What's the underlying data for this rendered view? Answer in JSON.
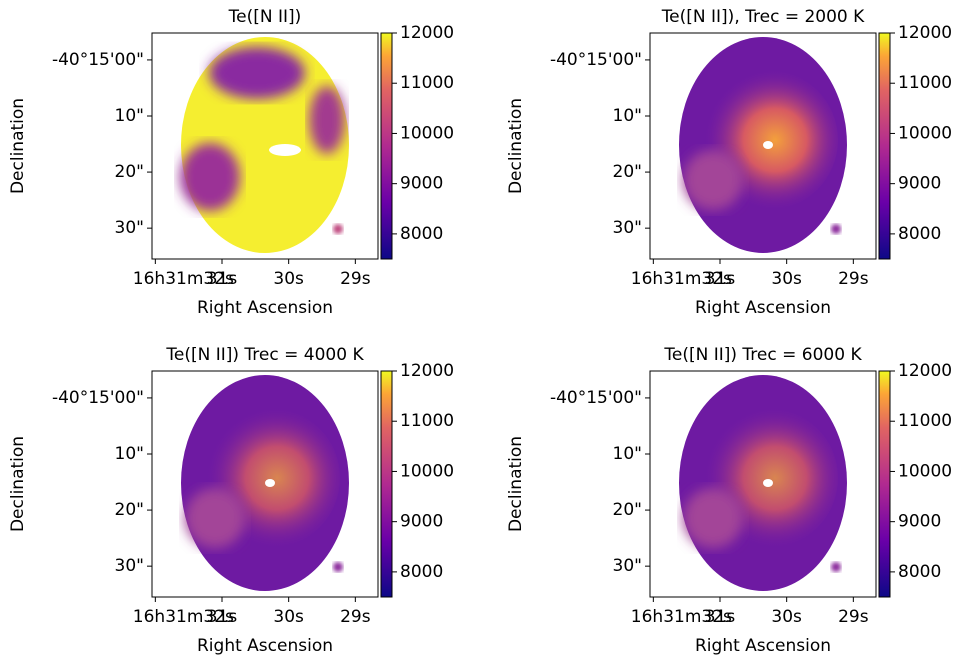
{
  "chart_data": [
    {
      "type": "image",
      "title": "Te([N II])",
      "xlabel": "Right Ascension",
      "ylabel": "Declination",
      "xlim": [
        32.05,
        28.66
      ],
      "ylim": [
        35.5,
        -4.8
      ],
      "xticks": [
        {
          "value": 32,
          "label": "16h31m32s"
        },
        {
          "value": 31,
          "label": "31s"
        },
        {
          "value": 30,
          "label": "30s"
        },
        {
          "value": 29,
          "label": "29s"
        }
      ],
      "yticks": [
        {
          "value": 0,
          "label": "-40°15'00\""
        },
        {
          "value": 10,
          "label": "10\""
        },
        {
          "value": 20,
          "label": "20\""
        },
        {
          "value": 30,
          "label": "30\""
        }
      ],
      "colormap": "plasma",
      "clim": [
        7500,
        12000
      ],
      "cticks": [
        8000,
        9000,
        10000,
        11000,
        12000
      ]
    },
    {
      "type": "image",
      "title": "Te([N II]), Trec = 2000 K",
      "xlabel": "Right Ascension",
      "ylabel": "Declination",
      "xlim": [
        32.05,
        28.66
      ],
      "ylim": [
        35.5,
        -4.8
      ],
      "xticks": [
        {
          "value": 32,
          "label": "16h31m32s"
        },
        {
          "value": 31,
          "label": "31s"
        },
        {
          "value": 30,
          "label": "30s"
        },
        {
          "value": 29,
          "label": "29s"
        }
      ],
      "yticks": [
        {
          "value": 0,
          "label": "-40°15'00\""
        },
        {
          "value": 10,
          "label": "10\""
        },
        {
          "value": 20,
          "label": "20\""
        },
        {
          "value": 30,
          "label": "30\""
        }
      ],
      "colormap": "plasma",
      "clim": [
        7500,
        12000
      ],
      "cticks": [
        8000,
        9000,
        10000,
        11000,
        12000
      ]
    },
    {
      "type": "image",
      "title": "Te([N II]) Trec = 4000 K",
      "xlabel": "Right Ascension",
      "ylabel": "Declination",
      "xlim": [
        32.05,
        28.66
      ],
      "ylim": [
        35.5,
        -4.8
      ],
      "xticks": [
        {
          "value": 32,
          "label": "16h31m32s"
        },
        {
          "value": 31,
          "label": "31s"
        },
        {
          "value": 30,
          "label": "30s"
        },
        {
          "value": 29,
          "label": "29s"
        }
      ],
      "yticks": [
        {
          "value": 0,
          "label": "-40°15'00\""
        },
        {
          "value": 10,
          "label": "10\""
        },
        {
          "value": 20,
          "label": "20\""
        },
        {
          "value": 30,
          "label": "30\""
        }
      ],
      "colormap": "plasma",
      "clim": [
        7500,
        12000
      ],
      "cticks": [
        8000,
        9000,
        10000,
        11000,
        12000
      ]
    },
    {
      "type": "image",
      "title": "Te([N II]) Trec = 6000 K",
      "xlabel": "Right Ascension",
      "ylabel": "Declination",
      "xlim": [
        32.05,
        28.66
      ],
      "ylim": [
        35.5,
        -4.8
      ],
      "xticks": [
        {
          "value": 32,
          "label": "16h31m32s"
        },
        {
          "value": 31,
          "label": "31s"
        },
        {
          "value": 30,
          "label": "30s"
        },
        {
          "value": 29,
          "label": "29s"
        }
      ],
      "yticks": [
        {
          "value": 0,
          "label": "-40°15'00\""
        },
        {
          "value": 10,
          "label": "10\""
        },
        {
          "value": 20,
          "label": "20\""
        },
        {
          "value": 30,
          "label": "30\""
        }
      ],
      "colormap": "plasma",
      "clim": [
        7500,
        12000
      ],
      "cticks": [
        8000,
        9000,
        10000,
        11000,
        12000
      ]
    }
  ]
}
